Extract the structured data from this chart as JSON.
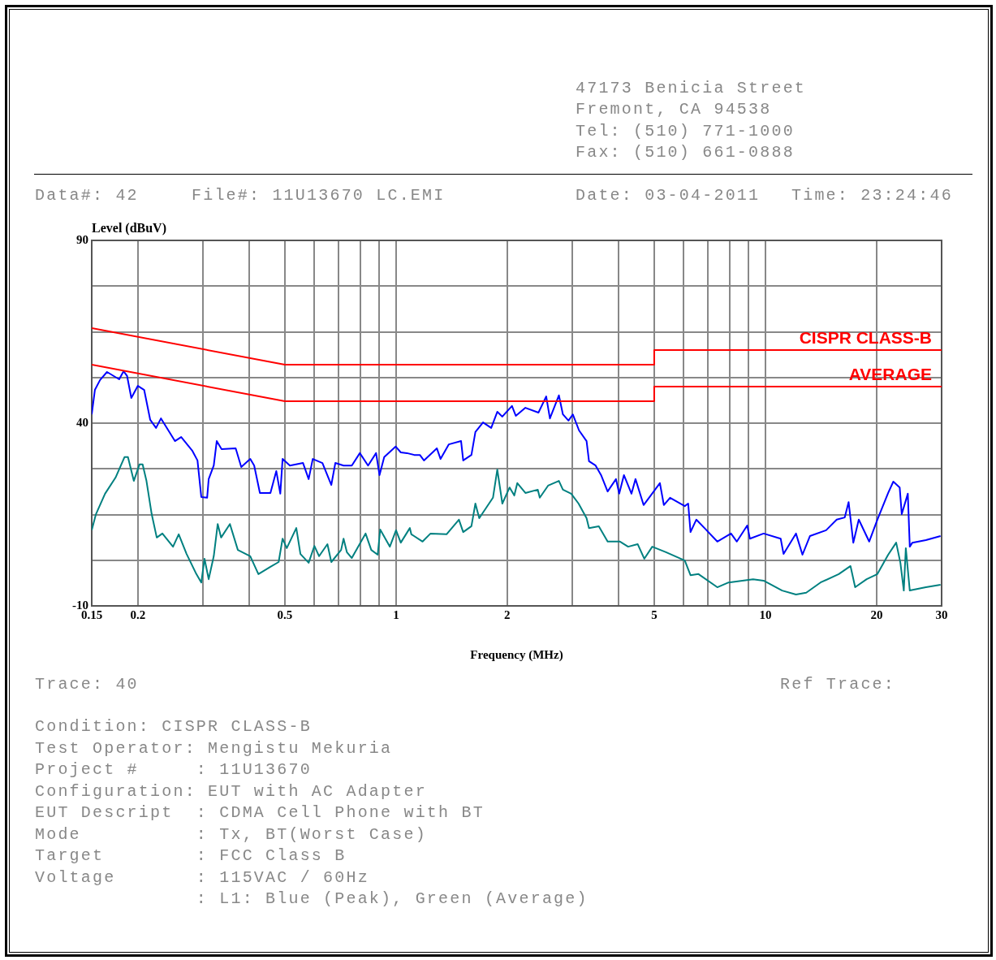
{
  "chart_data": {
    "type": "line",
    "xlabel": "Frequency (MHz)",
    "ylabel": "Level (dBuV)",
    "annotations": [
      "47173 Benicia Street",
      "Fremont, CA 94538",
      "Tel: (510) 771-1000",
      "Fax: (510) 661-0888",
      "Data#: 42",
      "File#: 11U13670 LC.EMI",
      "Date: 03-04-2011",
      "Time: 23:24:46",
      "Trace: 40",
      "Ref Trace:",
      "Condition: CISPR CLASS-B",
      "Test Operator: Mengistu Mekuria",
      "Project #     : 11U13670",
      "Configuration: EUT with AC Adapter",
      "EUT Descript  : CDMA Cell Phone with BT",
      "Mode          : Tx, BT(Worst Case)",
      "Target        : FCC Class B",
      "Voltage       : 115VAC / 60Hz",
      "              : L1: Blue (Peak), Green (Average)"
    ],
    "log": "x",
    "grid": true,
    "legend": false,
    "marker": "none",
    "line_style": "solid",
    "xlim": [
      0.15,
      30
    ],
    "ylim": [
      -10,
      90
    ],
    "xticks": [
      0.15,
      0.2,
      {
        "value": 0.3,
        "label": null
      },
      {
        "value": 0.4,
        "label": null
      },
      0.5,
      {
        "value": 0.6,
        "label": null
      },
      {
        "value": 0.7,
        "label": null
      },
      {
        "value": 0.8,
        "label": null
      },
      {
        "value": 0.9,
        "label": null
      },
      1,
      2,
      {
        "value": 3,
        "label": null
      },
      {
        "value": 4,
        "label": null
      },
      5,
      {
        "value": 6,
        "label": null
      },
      {
        "value": 7,
        "label": null
      },
      {
        "value": 8,
        "label": null
      },
      {
        "value": 9,
        "label": null
      },
      10,
      20,
      30
    ],
    "yticks": [
      90,
      {
        "value": 77.5,
        "label": null
      },
      {
        "value": 65,
        "label": null
      },
      {
        "value": 52.5,
        "label": null
      },
      40,
      {
        "value": 27.5,
        "label": null
      },
      {
        "value": 15,
        "label": null
      },
      {
        "value": 2.5,
        "label": null
      },
      -10
    ],
    "series": [
      {
        "name": "CISPR CLASS-B",
        "color": "#ff0000",
        "x": [
          0.15,
          0.5,
          5,
          5,
          30
        ],
        "values": [
          66,
          56,
          56,
          60,
          60
        ]
      },
      {
        "name": "AVERAGE",
        "color": "#ff0000",
        "x": [
          0.15,
          0.5,
          5,
          5,
          30
        ],
        "values": [
          56,
          46,
          46,
          50,
          50
        ]
      },
      {
        "color": "#0000ff",
        "x": [
          0.15,
          0.153,
          0.158,
          0.165,
          0.178,
          0.183,
          0.187,
          0.192,
          0.2,
          0.208,
          0.216,
          0.224,
          0.231,
          0.252,
          0.262,
          0.281,
          0.29,
          0.297,
          0.308,
          0.311,
          0.321,
          0.327,
          0.337,
          0.368,
          0.381,
          0.403,
          0.413,
          0.428,
          0.457,
          0.474,
          0.486,
          0.493,
          0.516,
          0.56,
          0.58,
          0.595,
          0.632,
          0.668,
          0.685,
          0.721,
          0.759,
          0.798,
          0.84,
          0.883,
          0.902,
          0.929,
          0.998,
          1.03,
          1.07,
          1.12,
          1.16,
          1.19,
          1.29,
          1.32,
          1.39,
          1.5,
          1.52,
          1.6,
          1.64,
          1.72,
          1.81,
          1.88,
          1.94,
          2.06,
          2.11,
          2.24,
          2.43,
          2.55,
          2.61,
          2.76,
          2.83,
          2.93,
          3.01,
          3.13,
          3.28,
          3.33,
          3.47,
          3.59,
          3.74,
          3.94,
          4.02,
          4.14,
          4.34,
          4.45,
          4.68,
          4.86,
          5.18,
          5.31,
          5.52,
          6.05,
          6.18,
          6.27,
          6.5,
          6.84,
          7.41,
          8.07,
          8.37,
          8.93,
          9.08,
          9.89,
          11.0,
          11.2,
          12.1,
          12.6,
          13.2,
          14.6,
          15.6,
          16.4,
          16.8,
          17.3,
          17.9,
          19.1,
          20.1,
          21.5,
          22.2,
          23.1,
          23.4,
          24.3,
          24.6,
          25.0,
          27.2,
          29.8
        ],
        "values": [
          42.4,
          49.1,
          51.8,
          54.0,
          52.0,
          54.2,
          52.9,
          46.9,
          50.2,
          49.1,
          40.9,
          38.7,
          41.3,
          35.1,
          36.2,
          32.4,
          29.8,
          19.8,
          19.6,
          24.7,
          28.4,
          35.1,
          32.9,
          33.1,
          28.0,
          30.2,
          28.4,
          20.9,
          20.9,
          26.9,
          20.7,
          30.2,
          28.4,
          29.1,
          24.7,
          30.2,
          29.1,
          23.1,
          29.1,
          28.4,
          28.4,
          31.8,
          28.4,
          31.8,
          25.8,
          30.7,
          33.6,
          32.0,
          31.8,
          31.3,
          31.3,
          29.8,
          33.1,
          30.2,
          34.2,
          35.1,
          29.8,
          31.3,
          37.6,
          40.2,
          38.7,
          43.1,
          41.8,
          44.7,
          42.0,
          44.2,
          42.9,
          47.3,
          41.3,
          47.6,
          42.4,
          40.7,
          42.4,
          38.0,
          35.1,
          29.6,
          28.4,
          25.8,
          21.3,
          24.7,
          20.7,
          25.8,
          20.7,
          24.7,
          17.6,
          19.8,
          23.6,
          17.6,
          19.6,
          17.3,
          18.0,
          10.2,
          13.6,
          11.3,
          7.6,
          9.8,
          7.6,
          12.0,
          8.4,
          9.8,
          8.4,
          4.2,
          9.8,
          4.0,
          9.1,
          10.7,
          13.6,
          14.2,
          18.4,
          7.3,
          13.6,
          7.6,
          13.6,
          20.9,
          24.0,
          22.4,
          15.1,
          20.7,
          6.2,
          7.3,
          8.0,
          9.1
        ]
      },
      {
        "color": "#008080",
        "x": [
          0.15,
          0.154,
          0.163,
          0.174,
          0.184,
          0.188,
          0.195,
          0.202,
          0.206,
          0.211,
          0.218,
          0.225,
          0.233,
          0.249,
          0.258,
          0.271,
          0.288,
          0.297,
          0.303,
          0.311,
          0.321,
          0.329,
          0.336,
          0.355,
          0.373,
          0.403,
          0.424,
          0.457,
          0.481,
          0.493,
          0.506,
          0.537,
          0.551,
          0.58,
          0.601,
          0.619,
          0.652,
          0.668,
          0.71,
          0.721,
          0.736,
          0.759,
          0.827,
          0.857,
          0.892,
          0.906,
          0.962,
          1.0,
          1.03,
          1.09,
          1.1,
          1.18,
          1.24,
          1.37,
          1.48,
          1.52,
          1.6,
          1.64,
          1.68,
          1.83,
          1.88,
          1.94,
          2.03,
          2.09,
          2.13,
          2.24,
          2.42,
          2.45,
          2.58,
          2.76,
          2.83,
          2.98,
          3.12,
          3.28,
          3.33,
          3.54,
          3.74,
          4.04,
          4.25,
          4.51,
          4.7,
          4.94,
          5.38,
          6.05,
          6.27,
          6.59,
          7.41,
          7.95,
          9.26,
          9.89,
          11.1,
          12.1,
          12.9,
          14.1,
          15.8,
          17.0,
          17.5,
          18.8,
          20.1,
          21.5,
          22.6,
          23.2,
          23.7,
          24.0,
          24.6,
          27.2,
          29.8
        ],
        "values": [
          10.7,
          15.1,
          20.7,
          25.1,
          30.7,
          30.7,
          24.2,
          28.7,
          28.7,
          24.2,
          15.1,
          8.7,
          9.8,
          6.2,
          9.6,
          4.2,
          -1.3,
          -3.6,
          2.9,
          -2.7,
          3.6,
          12.4,
          8.7,
          12.4,
          5.3,
          3.6,
          -1.3,
          0.7,
          2.0,
          8.4,
          5.8,
          11.3,
          4.2,
          1.8,
          6.4,
          3.6,
          6.9,
          2.0,
          5.3,
          8.4,
          4.7,
          3.1,
          9.8,
          5.3,
          4.0,
          10.9,
          6.2,
          10.7,
          7.3,
          11.3,
          9.6,
          7.6,
          9.8,
          9.6,
          13.6,
          10.2,
          11.8,
          18.0,
          14.0,
          19.6,
          27.3,
          18.0,
          22.4,
          20.2,
          23.6,
          20.9,
          21.8,
          19.6,
          22.9,
          24.2,
          21.8,
          20.7,
          18.0,
          14.0,
          11.3,
          11.8,
          7.6,
          7.6,
          6.2,
          6.9,
          2.9,
          6.2,
          4.7,
          2.4,
          -1.6,
          -1.3,
          -4.9,
          -3.6,
          -2.7,
          -3.1,
          -5.8,
          -6.9,
          -6.4,
          -3.6,
          -1.3,
          0.9,
          -4.9,
          -2.7,
          -1.3,
          4.0,
          7.3,
          1.8,
          -5.8,
          5.8,
          -5.8,
          -4.9,
          -4.2
        ]
      }
    ]
  }
}
